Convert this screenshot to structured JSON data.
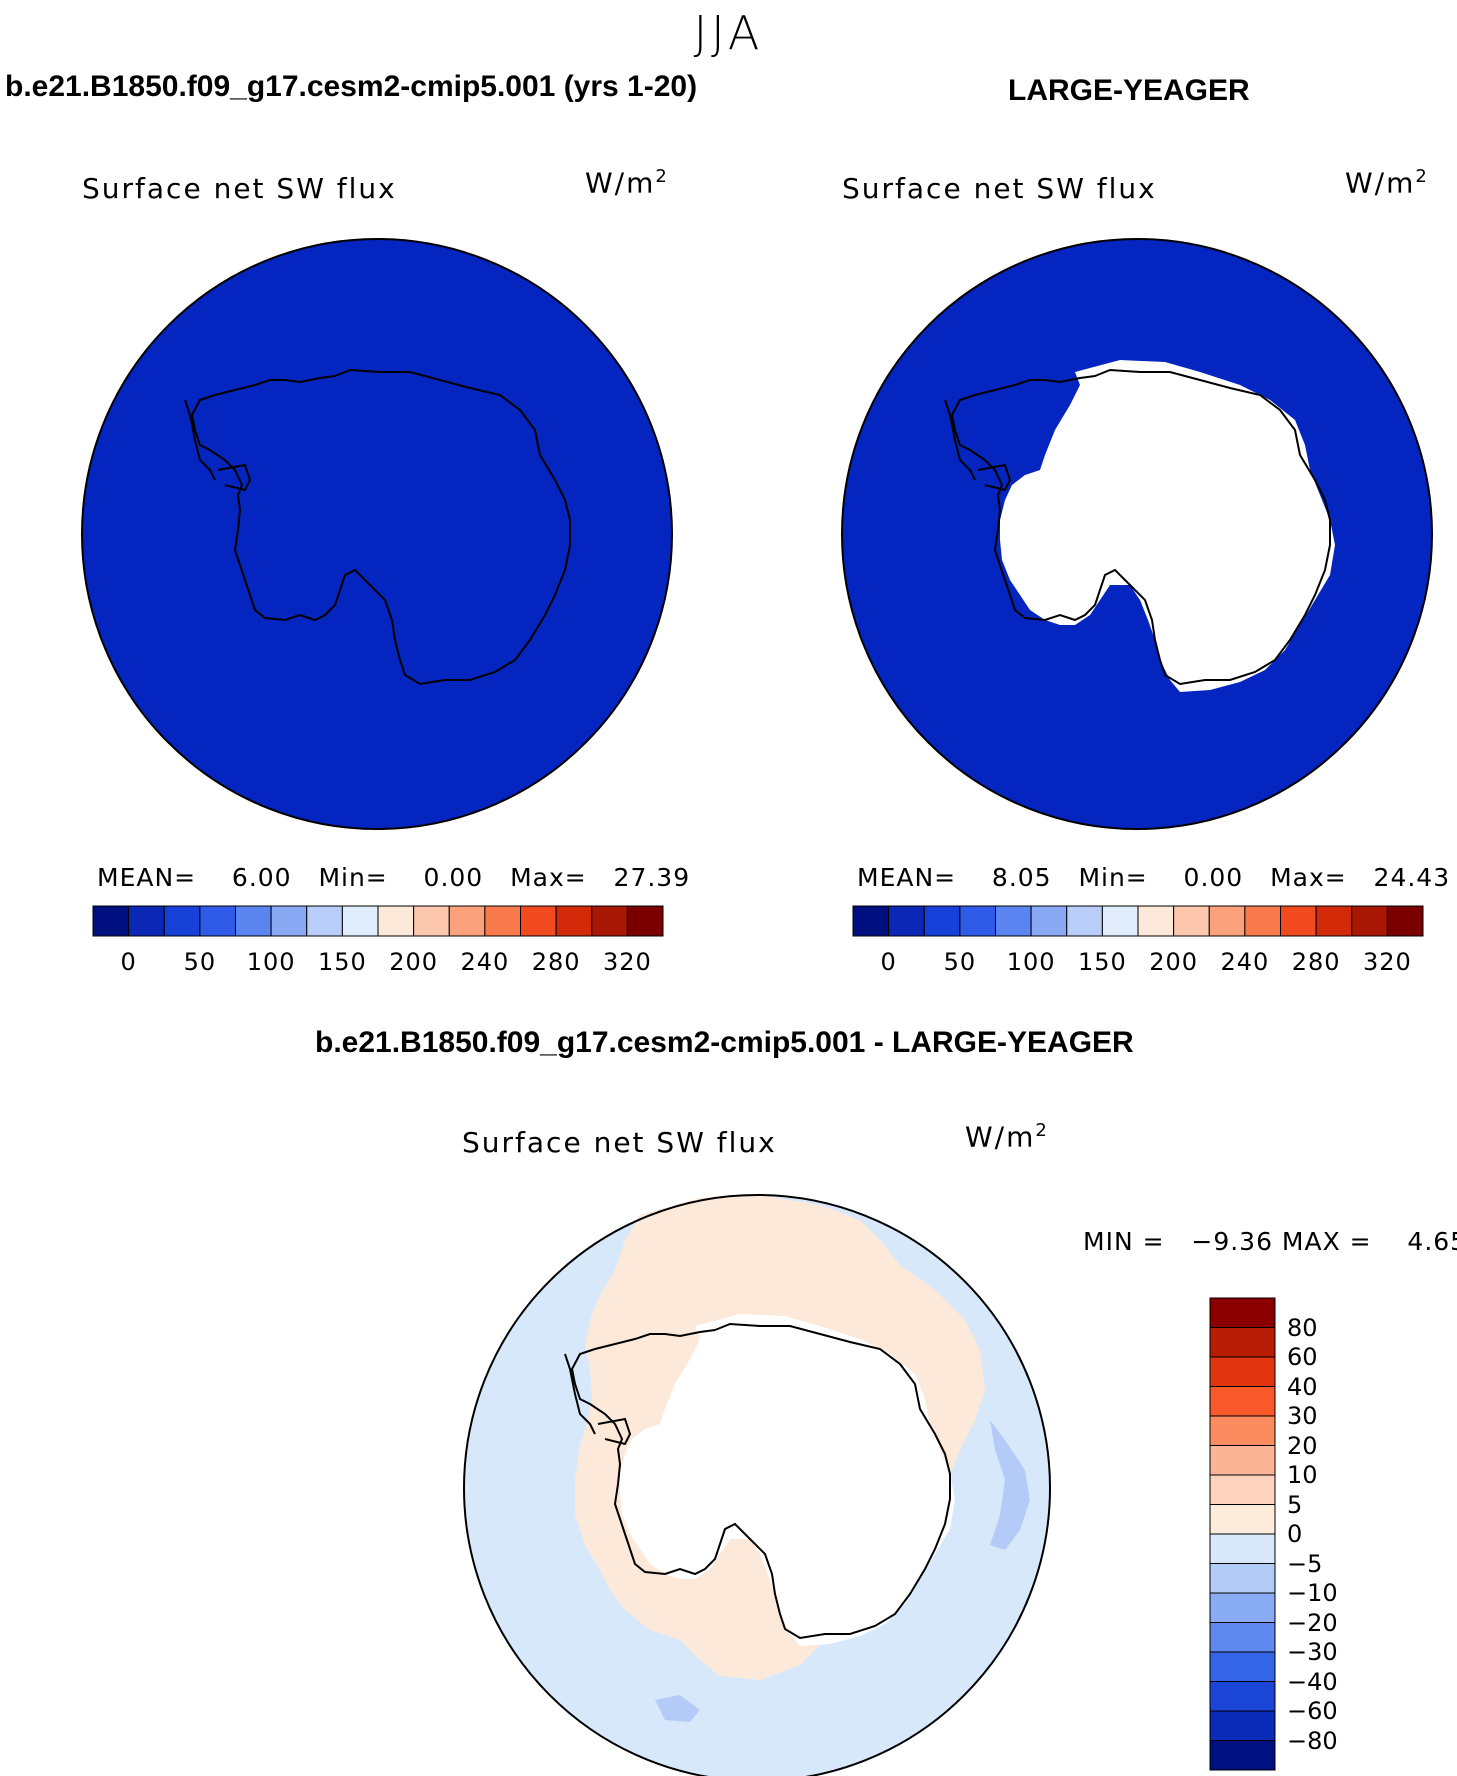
{
  "season": "JJA",
  "panels": [
    {
      "title": "b.e21.B1850.f09_g17.cesm2-cmip5.001 (yrs 1-20)",
      "label": "Surface net SW flux",
      "units": "W/m",
      "units_sup": "2",
      "stats": {
        "mean_label": "MEAN=",
        "mean": "6.00",
        "min_label": "Min=",
        "min": "0.00",
        "max_label": "Max=",
        "max": "27.39"
      }
    },
    {
      "title": "LARGE-YEAGER",
      "label": "Surface net SW flux",
      "units": "W/m",
      "units_sup": "2",
      "stats": {
        "mean_label": "MEAN=",
        "mean": "8.05",
        "min_label": "Min=",
        "min": "0.00",
        "max_label": "Max=",
        "max": "24.43"
      }
    },
    {
      "title": "b.e21.B1850.f09_g17.cesm2-cmip5.001 - LARGE-YEAGER",
      "label": "Surface net SW flux",
      "units": "W/m",
      "units_sup": "2",
      "stats": {
        "text": "MIN =   −9.36 MAX =    4.65"
      }
    }
  ],
  "colorbar_top": {
    "ticks": [
      "0",
      "50",
      "100",
      "150",
      "200",
      "240",
      "280",
      "320"
    ],
    "colors": [
      "#000f80",
      "#0a27b5",
      "#1640d8",
      "#2f5be8",
      "#5a84f0",
      "#8aa9f4",
      "#b8cdf8",
      "#e0ecfc",
      "#fde9d9",
      "#fcc7ad",
      "#fba27c",
      "#f87a4d",
      "#f04a1e",
      "#d22a08",
      "#a81804",
      "#7a0000"
    ]
  },
  "colorbar_diff": {
    "ticks": [
      "80",
      "60",
      "40",
      "30",
      "20",
      "10",
      "5",
      "0",
      "−5",
      "−10",
      "−20",
      "−30",
      "−40",
      "−60",
      "−80"
    ],
    "colors": [
      "#8a0000",
      "#b81c05",
      "#e03510",
      "#f8582a",
      "#fb8c60",
      "#fcb497",
      "#fdd3bd",
      "#fdebdc",
      "#d9e8fb",
      "#b3ccf7",
      "#8aacf3",
      "#5f88ef",
      "#3566e8",
      "#1a45d6",
      "#0a2ab8",
      "#001080"
    ]
  },
  "colors": {
    "ocean_top": "#0425c0",
    "land_white": "#ffffff",
    "diff_pos": "#fde9d9",
    "diff_neg": "#d8e8fb",
    "diff_neg2": "#b4cbf7"
  }
}
